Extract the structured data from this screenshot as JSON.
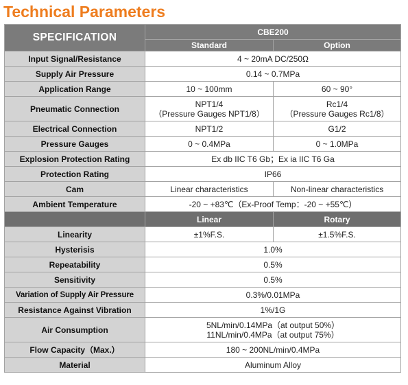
{
  "page": {
    "title": "Technical Parameters"
  },
  "table": {
    "spec_header": "SPECIFICATION",
    "model": "CBE200",
    "sub_headers": [
      "Standard",
      "Option"
    ],
    "rows": [
      {
        "label": "Input Signal/Resistance",
        "value": "4 ~ 20mA DC/250Ω"
      },
      {
        "label": "Supply Air Pressure",
        "value": "0.14 ~ 0.7MPa"
      },
      {
        "label": "Application Range",
        "standard": "10 ~ 100mm",
        "option": "60 ~ 90°"
      },
      {
        "label": "Pneumatic Connection",
        "standard": "NPT1/4",
        "standard_2": "（Pressure Gauges NPT1/8）",
        "option": "Rc1/4",
        "option_2": "（Pressure Gauges Rc1/8）"
      },
      {
        "label": "Electrical Connection",
        "standard": "NPT1/2",
        "option": "G1/2"
      },
      {
        "label": "Pressure Gauges",
        "standard": "0 ~ 0.4MPa",
        "option": "0 ~ 1.0MPa"
      },
      {
        "label": "Explosion Protection Rating",
        "value": "Ex db IIC T6 Gb；Ex ia IIC T6 Ga"
      },
      {
        "label": "Protection Rating",
        "value": "IP66"
      },
      {
        "label": "Cam",
        "standard": "Linear characteristics",
        "option": "Non-linear characteristics"
      },
      {
        "label": "Ambient Temperature",
        "value": "-20 ~ +83℃（Ex-Proof Temp：-20 ~ +55℃）"
      }
    ],
    "section2_headers": [
      "Linear",
      "Rotary"
    ],
    "rows2": [
      {
        "label": "Linearity",
        "linear": "±1%F.S.",
        "rotary": "±1.5%F.S."
      },
      {
        "label": "Hysterisis",
        "value": "1.0%"
      },
      {
        "label": "Repeatability",
        "value": "0.5%"
      },
      {
        "label": "Sensitivity",
        "value": "0.5%"
      },
      {
        "label": "Variation of Supply Air Pressure",
        "value": "0.3%/0.01MPa"
      },
      {
        "label": "Resistance Against Vibration",
        "value": "1%/1G"
      },
      {
        "label": "Air Consumption",
        "value": "5NL/min/0.14MPa（at output 50%）",
        "value_2": "11NL/min/0.4MPa（at output 75%）"
      },
      {
        "label": "Flow Capacity（Max.）",
        "value": "180 ~ 200NL/min/0.4MPa"
      },
      {
        "label": "Material",
        "value": "Aluminum Alloy"
      }
    ]
  }
}
